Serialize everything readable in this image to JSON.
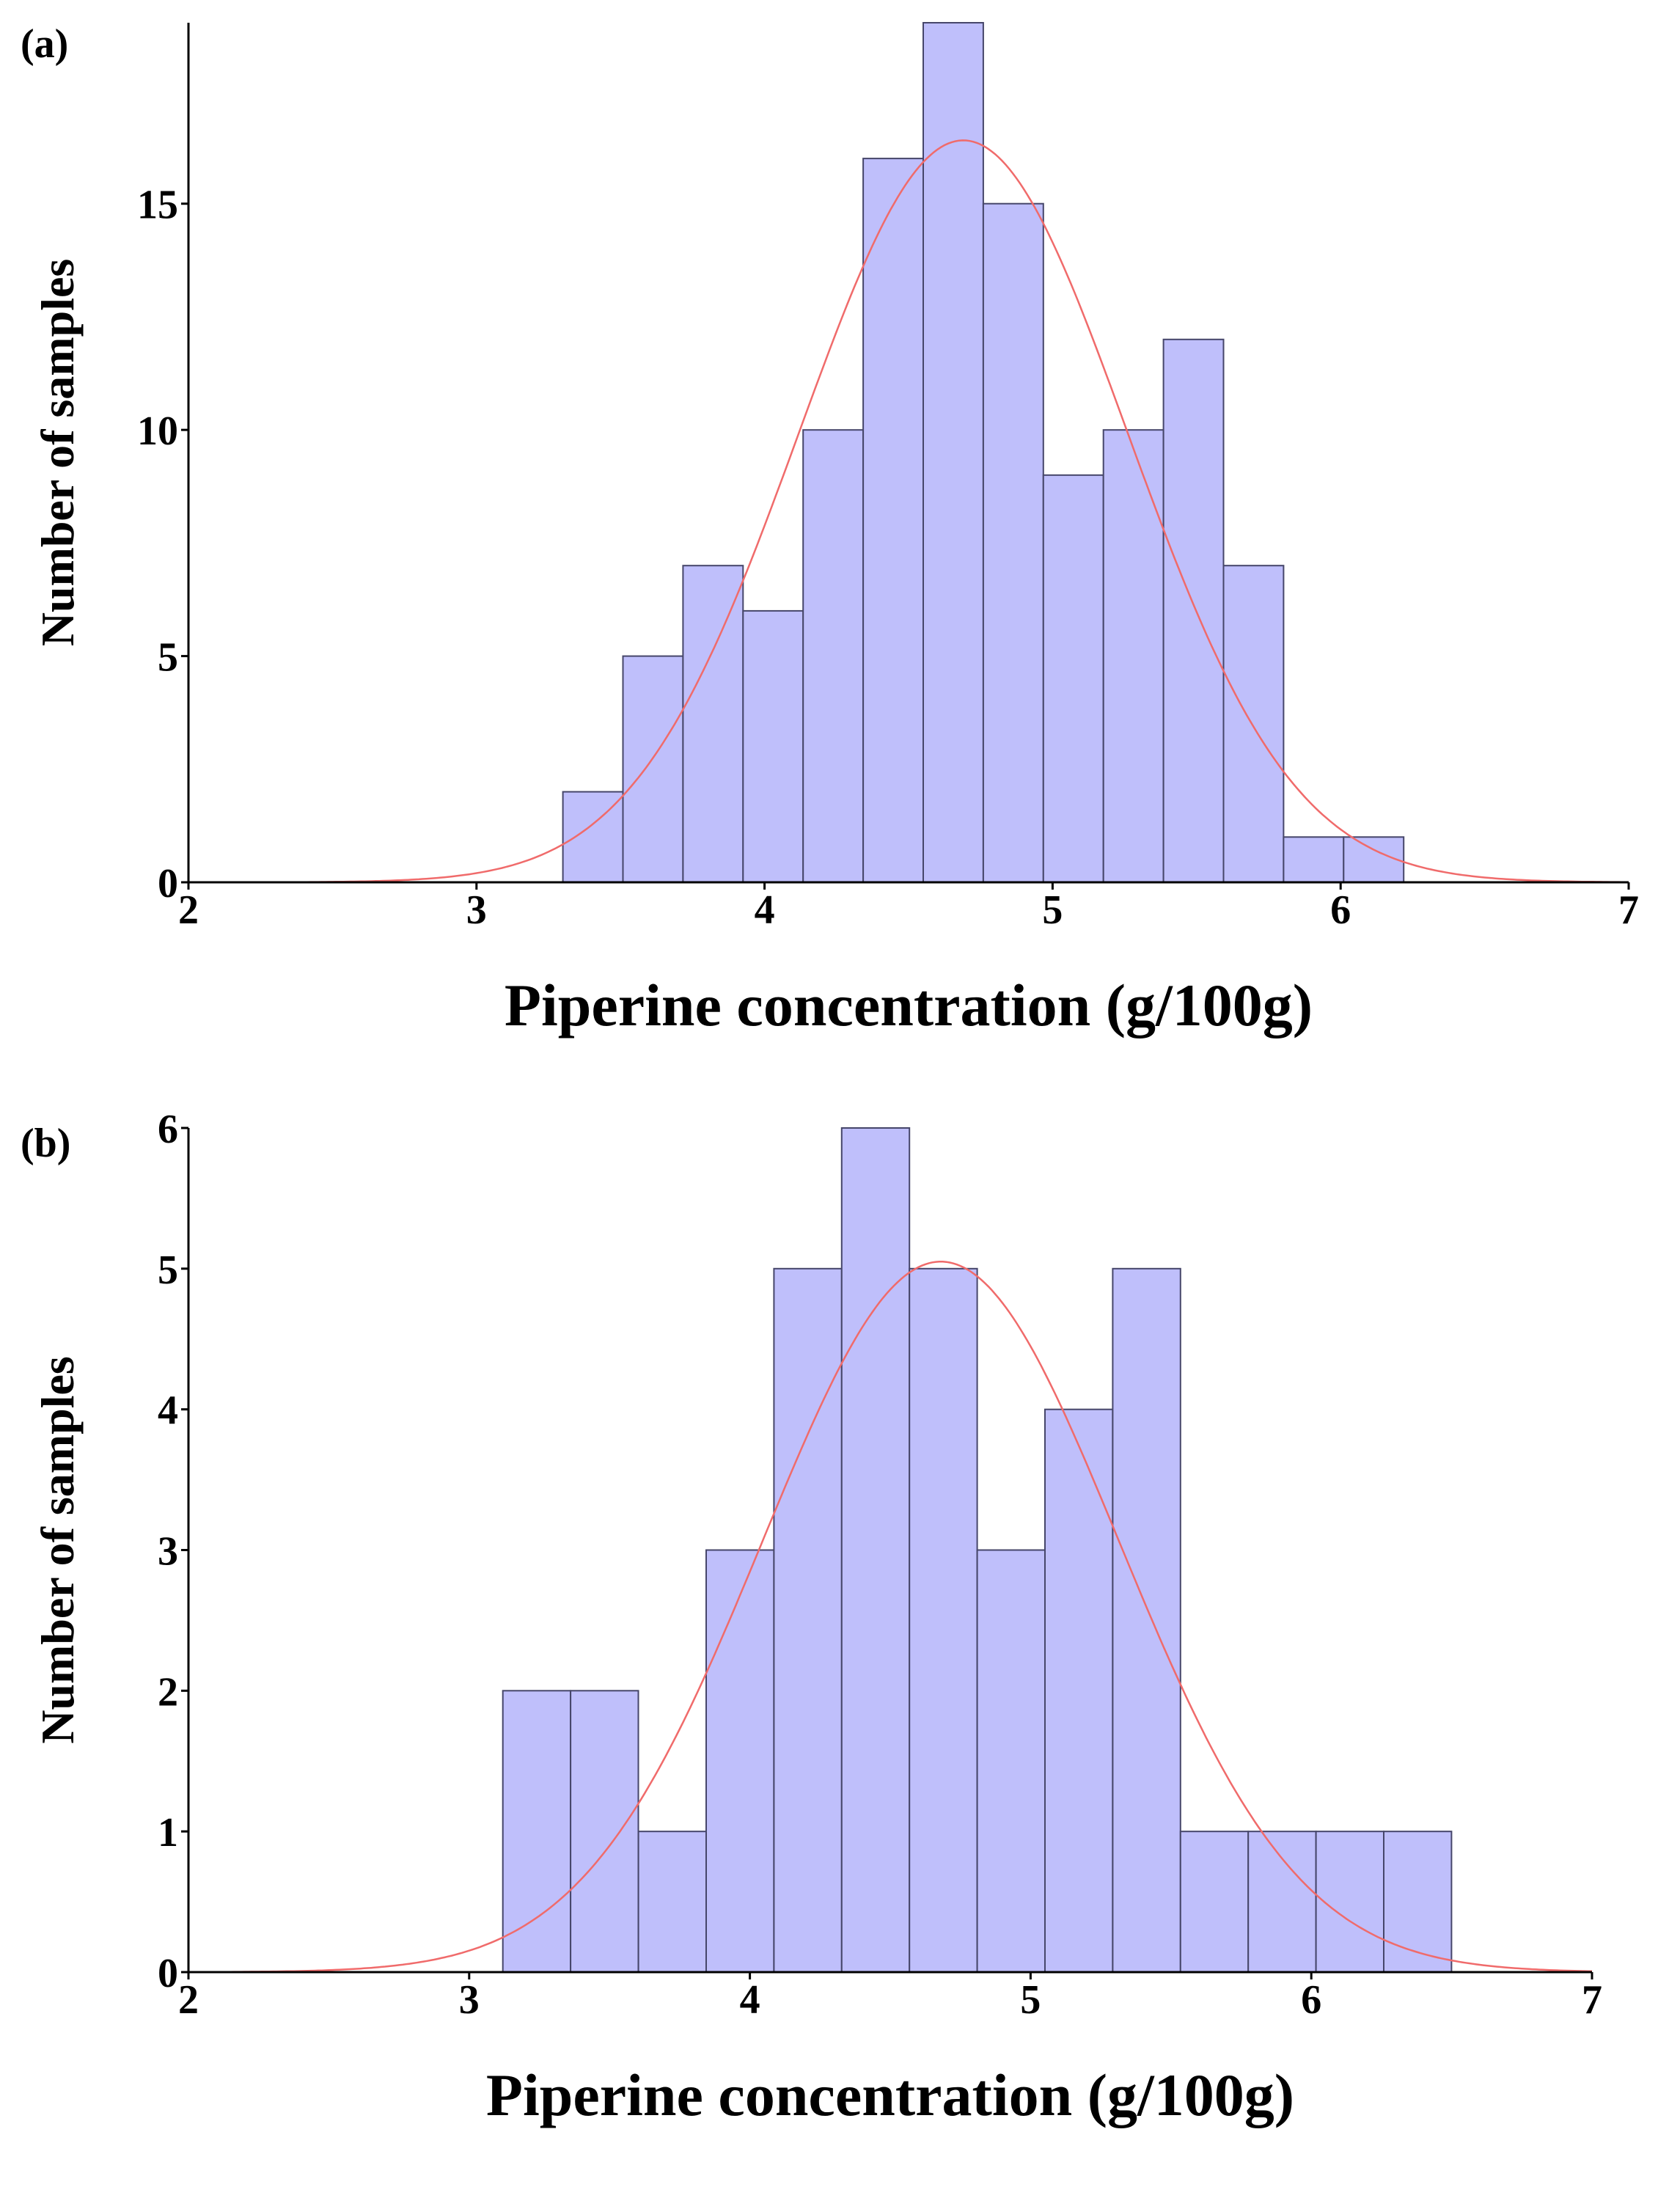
{
  "colors": {
    "bar_fill": "#bfbffb",
    "bar_stroke": "#46466a",
    "curve": "#f06b6b",
    "axis": "#000000",
    "text": "#000000"
  },
  "chart_data": [
    {
      "type": "bar",
      "panel_label": "(a)",
      "title": "",
      "xlabel": "Piperine concentration (g/100g)",
      "ylabel": "Number of samples",
      "xlim": [
        2,
        7
      ],
      "ylim": [
        0,
        19
      ],
      "x_ticks": [
        2,
        3,
        4,
        5,
        6,
        7
      ],
      "y_ticks": [
        0,
        5,
        10,
        15
      ],
      "grid": false,
      "bins": {
        "start": 3.3,
        "width": 0.2085,
        "counts": [
          2,
          5,
          7,
          6,
          10,
          16,
          19,
          15,
          9,
          10,
          12,
          7,
          1,
          1
        ]
      },
      "fit_curve": {
        "type": "normal",
        "mean": 4.69,
        "sd": 0.57,
        "peak": 16.4
      }
    },
    {
      "type": "bar",
      "panel_label": "(b)",
      "title": "",
      "xlabel": "Piperine concentration (g/100g)",
      "ylabel": "Number of samples",
      "xlim": [
        2,
        7
      ],
      "ylim": [
        0,
        6
      ],
      "x_ticks": [
        2,
        3,
        4,
        5,
        6,
        7
      ],
      "y_ticks": [
        0,
        1,
        2,
        3,
        4,
        5,
        6
      ],
      "grid": false,
      "bins": {
        "start": 3.12,
        "width": 0.2414,
        "counts": [
          2,
          2,
          1,
          3,
          5,
          6,
          5,
          3,
          4,
          5,
          1,
          1,
          1,
          1
        ]
      },
      "fit_curve": {
        "type": "normal",
        "mean": 4.68,
        "sd": 0.635,
        "peak": 5.05
      }
    }
  ]
}
